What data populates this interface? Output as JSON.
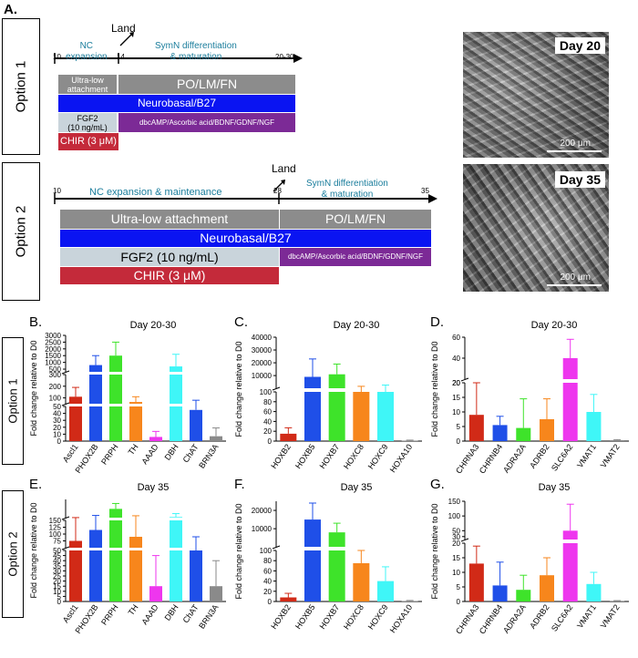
{
  "figure": {
    "panel_A_label": "A.",
    "option1": {
      "label": "Option 1",
      "days": {
        "start": "10",
        "land": "14",
        "end": "20-30"
      },
      "land_label": "Land",
      "stage1": "NC\nexpansion",
      "stage2": "SymN differentiation\n& maturation",
      "ultra_low": "Ultra-low\nattachment",
      "po": "PO/LM/FN",
      "neurobasal": "Neurobasal/B27",
      "fgf2": "FGF2\n(10 ng/mL)",
      "dbc": "dbcAMP/Ascorbic acid/BDNF/GDNF/NGF",
      "chir": "CHIR (3 μM)",
      "micro_day": "Day 20",
      "micro_scale": "200 μm"
    },
    "option2": {
      "label": "Option 2",
      "days": {
        "start": "10",
        "land": "28",
        "end": "35"
      },
      "land_label": "Land",
      "stage1": "NC expansion & maintenance",
      "stage2": "SymN differentiation\n& maturation",
      "ultra_low": "Ultra-low attachment",
      "po": "PO/LM/FN",
      "neurobasal": "Neurobasal/B27",
      "fgf2": "FGF2 (10 ng/mL)",
      "dbc": "dbcAMP/Ascorbic acid/BDNF/GDNF/NGF",
      "chir": "CHIR (3 μM)",
      "micro_day": "Day 35",
      "micro_scale": "200 μm"
    },
    "row_labels": {
      "row1": "Option 1",
      "row2": "Option 2"
    },
    "colors": {
      "red": "#d12a17",
      "blue": "#1f4fe8",
      "green": "#3ee32a",
      "orange": "#f7861c",
      "magenta": "#ee36ee",
      "cyan": "#3ff6f7",
      "grey": "#8a8a8a",
      "timeline_grey": "#8c8c8c",
      "timeline_blue": "#0a14f2",
      "timeline_lightgrey": "#c9d4db",
      "timeline_purple": "#7c2a96",
      "timeline_red": "#c42a3a",
      "teal_text": "#1a7d9c"
    }
  },
  "chart_data": [
    {
      "panel": "B.",
      "type": "bar",
      "title": "Day 20-30",
      "ylabel": "Fold change relative to D0",
      "categories": [
        "Ascl1",
        "PHOX2B",
        "PRPH",
        "TH",
        "AAAD",
        "DBH",
        "ChAT",
        "BRN3A"
      ],
      "values": [
        110,
        800,
        1500,
        65,
        6,
        700,
        45,
        7
      ],
      "errors": [
        80,
        700,
        1000,
        45,
        8,
        900,
        35,
        12
      ],
      "colors": [
        "#d12a17",
        "#1f4fe8",
        "#3ee32a",
        "#f7861c",
        "#ee36ee",
        "#3ff6f7",
        "#1f4fe8",
        "#8a8a8a"
      ],
      "axis_segments": [
        {
          "range": [
            0,
            50
          ],
          "ticks": [
            0,
            10,
            20,
            30,
            40,
            50
          ]
        },
        {
          "range": [
            50,
            300
          ],
          "ticks": [
            100,
            200,
            300
          ]
        },
        {
          "range": [
            300,
            3000
          ],
          "ticks": [
            500,
            1000,
            1500,
            2000,
            2500,
            3000
          ]
        }
      ]
    },
    {
      "panel": "C.",
      "type": "bar",
      "title": "Day 20-30",
      "ylabel": "Fold change relative to D0",
      "categories": [
        "HOXB2",
        "HOXB5",
        "HOXB7",
        "HOXC8",
        "HOXC9",
        "HOXA10"
      ],
      "values": [
        15,
        9000,
        11000,
        100,
        100,
        1
      ],
      "errors": [
        12,
        14000,
        8000,
        1500,
        2500,
        1
      ],
      "colors": [
        "#d12a17",
        "#1f4fe8",
        "#3ee32a",
        "#f7861c",
        "#3ff6f7",
        "#8a8a8a"
      ],
      "axis_segments": [
        {
          "range": [
            0,
            100
          ],
          "ticks": [
            0,
            20,
            40,
            60,
            80,
            100
          ]
        },
        {
          "range": [
            100,
            40000
          ],
          "ticks": [
            10000,
            20000,
            30000,
            40000
          ]
        }
      ]
    },
    {
      "panel": "D.",
      "type": "bar",
      "title": "Day 20-30",
      "ylabel": "Fold change relative to D0",
      "categories": [
        "CHRNA3",
        "CHRNB4",
        "ADRA2A",
        "ADRB2",
        "SLC6A2",
        "VMAT1",
        "VMAT2"
      ],
      "values": [
        9,
        5.5,
        4.5,
        7.5,
        40,
        10,
        0.3
      ],
      "errors": [
        11,
        3,
        10,
        7,
        18,
        6,
        0.2
      ],
      "colors": [
        "#d12a17",
        "#1f4fe8",
        "#3ee32a",
        "#f7861c",
        "#ee36ee",
        "#3ff6f7",
        "#8a8a8a"
      ],
      "axis_segments": [
        {
          "range": [
            0,
            20
          ],
          "ticks": [
            0,
            5,
            10,
            15,
            20
          ]
        },
        {
          "range": [
            20,
            60
          ],
          "ticks": [
            20,
            40,
            60
          ]
        }
      ]
    },
    {
      "panel": "E.",
      "type": "bar",
      "title": "Day 35",
      "ylabel": "Fold change relative to D0",
      "categories": [
        "Ascl1",
        "PHOX2B",
        "PRPH",
        "TH",
        "AAAD",
        "DBH",
        "ChAT",
        "BRN3A"
      ],
      "values": [
        75,
        115,
        800,
        90,
        15,
        200,
        50,
        15
      ],
      "errors": [
        80,
        200,
        400,
        200,
        30,
        250,
        40,
        25
      ],
      "colors": [
        "#d12a17",
        "#1f4fe8",
        "#3ee32a",
        "#f7861c",
        "#ee36ee",
        "#3ff6f7",
        "#1f4fe8",
        "#8a8a8a"
      ],
      "axis_segments": [
        {
          "range": [
            0,
            50
          ],
          "ticks": [
            0,
            5,
            10,
            15,
            20,
            25,
            30,
            35,
            40,
            45,
            50
          ]
        },
        {
          "range": [
            50,
            150
          ],
          "ticks": [
            75,
            100,
            125,
            150
          ]
        },
        {
          "range": [
            150,
            1500
          ],
          "ticks": []
        }
      ]
    },
    {
      "panel": "F.",
      "type": "bar",
      "title": "Day 35",
      "ylabel": "Fold change relative to D0",
      "categories": [
        "HOXB2",
        "HOXB5",
        "HOXB7",
        "HOXC8",
        "HOXC9",
        "HOXA10"
      ],
      "values": [
        8,
        15000,
        8000,
        75,
        40,
        1
      ],
      "errors": [
        8,
        9000,
        5000,
        25,
        28,
        1
      ],
      "colors": [
        "#d12a17",
        "#1f4fe8",
        "#3ee32a",
        "#f7861c",
        "#3ff6f7",
        "#8a8a8a"
      ],
      "axis_segments": [
        {
          "range": [
            0,
            100
          ],
          "ticks": [
            0,
            20,
            40,
            60,
            80,
            100
          ]
        },
        {
          "range": [
            100,
            25000
          ],
          "ticks": [
            10000,
            20000
          ]
        }
      ]
    },
    {
      "panel": "G.",
      "type": "bar",
      "title": "Day 35",
      "ylabel": "Fold change relative to D0",
      "categories": [
        "CHRNA3",
        "CHRNB4",
        "ADRA2A",
        "ADRB2",
        "SLC6A2",
        "VMAT1",
        "VMAT2"
      ],
      "values": [
        13,
        5.5,
        4,
        9,
        50,
        6,
        0.2
      ],
      "errors": [
        6,
        8,
        5,
        6,
        90,
        4,
        0.1
      ],
      "colors": [
        "#d12a17",
        "#1f4fe8",
        "#3ee32a",
        "#f7861c",
        "#ee36ee",
        "#3ff6f7",
        "#8a8a8a"
      ],
      "axis_segments": [
        {
          "range": [
            0,
            20
          ],
          "ticks": [
            0,
            5,
            10,
            15,
            20
          ]
        },
        {
          "range": [
            20,
            150
          ],
          "ticks": [
            30,
            50,
            100,
            150
          ]
        }
      ]
    }
  ]
}
